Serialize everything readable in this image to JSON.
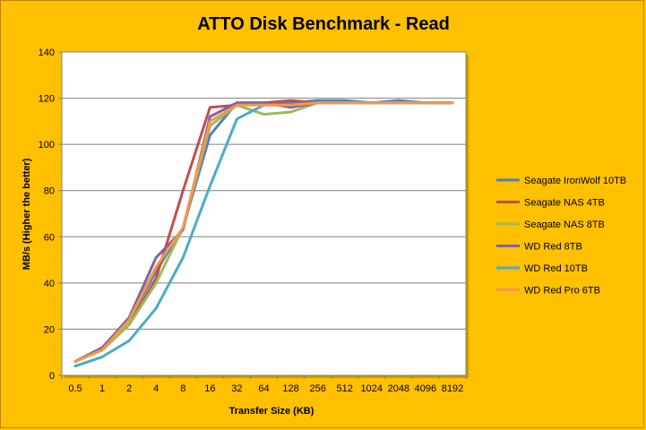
{
  "chart_data": {
    "type": "line",
    "title": "ATTO Disk Benchmark - Read",
    "xlabel": "Transfer Size (KB)",
    "ylabel": "MB/s (Higher the better)",
    "categories": [
      "0.5",
      "1",
      "2",
      "4",
      "8",
      "16",
      "32",
      "64",
      "128",
      "256",
      "512",
      "1024",
      "2048",
      "4096",
      "8192"
    ],
    "ylim": [
      0,
      140
    ],
    "yticks": [
      0,
      20,
      40,
      60,
      80,
      100,
      120,
      140
    ],
    "grid": true,
    "legend_position": "right",
    "series": [
      {
        "name": "Seagate IronWolf 10TB",
        "color": "#4F81BD",
        "values": [
          6,
          12,
          24,
          45,
          64,
          104,
          118,
          118,
          118,
          119,
          119,
          118,
          119,
          118,
          118
        ]
      },
      {
        "name": "Seagate NAS 4TB",
        "color": "#C0504D",
        "values": [
          6,
          11,
          22,
          42,
          80,
          116,
          117,
          118,
          119,
          118,
          118,
          118,
          118,
          118,
          118
        ]
      },
      {
        "name": "Seagate NAS 8TB",
        "color": "#9BBB59",
        "values": [
          6,
          11,
          22,
          40,
          64,
          108,
          117,
          113,
          114,
          118,
          118,
          118,
          118,
          118,
          118
        ]
      },
      {
        "name": "WD Red 8TB",
        "color": "#8064A2",
        "values": [
          6,
          12,
          25,
          51,
          63,
          112,
          118,
          118,
          116,
          118,
          118,
          118,
          118,
          118,
          118
        ]
      },
      {
        "name": "WD Red 10TB",
        "color": "#4BACC6",
        "values": [
          4,
          8,
          15,
          29,
          51,
          82,
          111,
          117,
          117,
          118,
          118,
          118,
          118,
          118,
          118
        ]
      },
      {
        "name": "WD Red Pro 6TB",
        "color": "#F79646",
        "values": [
          6,
          11,
          24,
          47,
          64,
          110,
          117,
          117,
          117,
          118,
          118,
          118,
          118,
          118,
          118
        ]
      }
    ]
  }
}
